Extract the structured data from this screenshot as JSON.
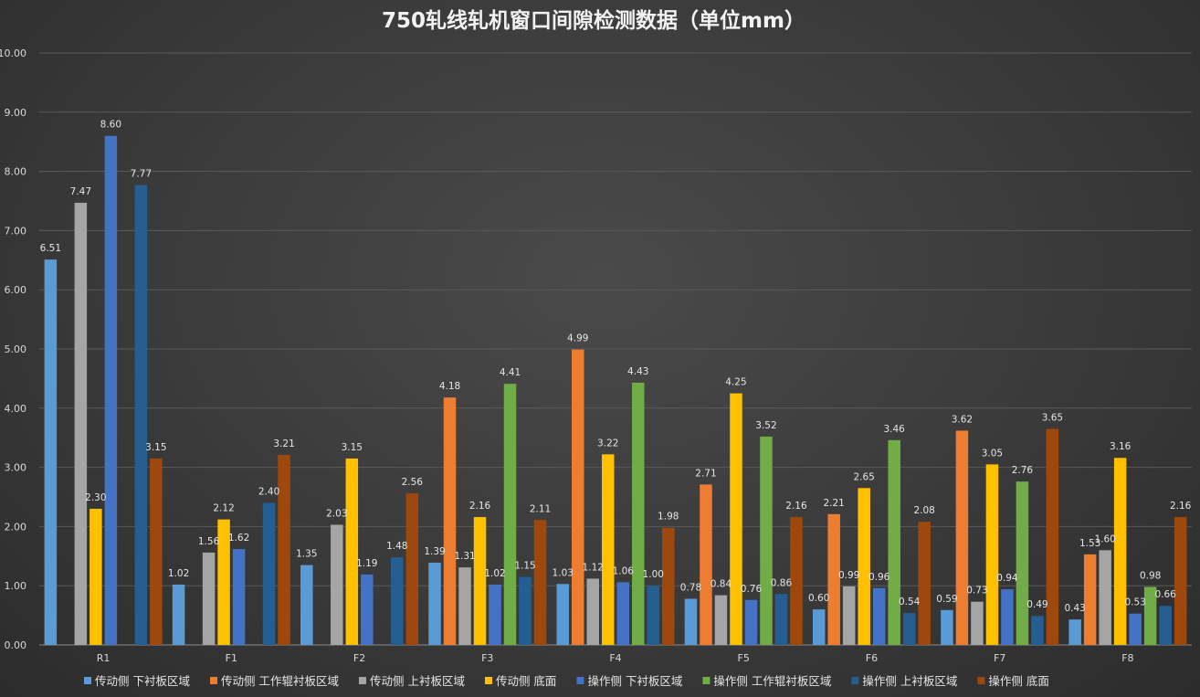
{
  "chart_data": {
    "type": "bar",
    "title": "750轧线轧机窗口间隙检测数据（单位mm）",
    "xlabel": "",
    "ylabel": "",
    "ylim": [
      0,
      10
    ],
    "yticks": [
      "0.00",
      "1.00",
      "2.00",
      "3.00",
      "4.00",
      "5.00",
      "6.00",
      "7.00",
      "8.00",
      "9.00",
      "10.00"
    ],
    "grid": true,
    "legend_position": "bottom",
    "categories": [
      "R1",
      "F1",
      "F2",
      "F3",
      "F4",
      "F5",
      "F6",
      "F7",
      "F8"
    ],
    "series": [
      {
        "name": "传动侧 下衬板区域",
        "color": "#5b9bd5",
        "values": [
          6.51,
          1.02,
          1.35,
          1.39,
          1.03,
          0.78,
          0.6,
          0.59,
          0.43
        ]
      },
      {
        "name": "传动侧 工作辊衬板区域",
        "color": "#ed7d31",
        "values": [
          null,
          null,
          null,
          4.18,
          4.99,
          2.71,
          2.21,
          3.62,
          1.53
        ]
      },
      {
        "name": "传动侧 上衬板区域",
        "color": "#a5a5a5",
        "values": [
          7.47,
          1.56,
          2.03,
          1.31,
          1.12,
          0.84,
          0.99,
          0.73,
          1.6
        ]
      },
      {
        "name": "传动侧 底面",
        "color": "#ffc000",
        "values": [
          2.3,
          2.12,
          3.15,
          2.16,
          3.22,
          4.25,
          2.65,
          3.05,
          3.16
        ]
      },
      {
        "name": "操作侧 下衬板区域",
        "color": "#4472c4",
        "values": [
          8.6,
          1.62,
          1.19,
          1.02,
          1.06,
          0.76,
          0.96,
          0.94,
          0.53
        ]
      },
      {
        "name": "操作侧 工作辊衬板区域",
        "color": "#70ad47",
        "values": [
          null,
          null,
          null,
          4.41,
          4.43,
          3.52,
          3.46,
          2.76,
          0.98
        ]
      },
      {
        "name": "操作侧 上衬板区域",
        "color": "#255e91",
        "values": [
          7.77,
          2.4,
          1.48,
          1.15,
          1.0,
          0.86,
          0.54,
          0.49,
          0.66
        ]
      },
      {
        "name": "操作侧 底面",
        "color": "#9e480e",
        "values": [
          3.15,
          3.21,
          2.56,
          2.11,
          1.98,
          2.16,
          2.08,
          3.65,
          2.16
        ]
      }
    ]
  }
}
